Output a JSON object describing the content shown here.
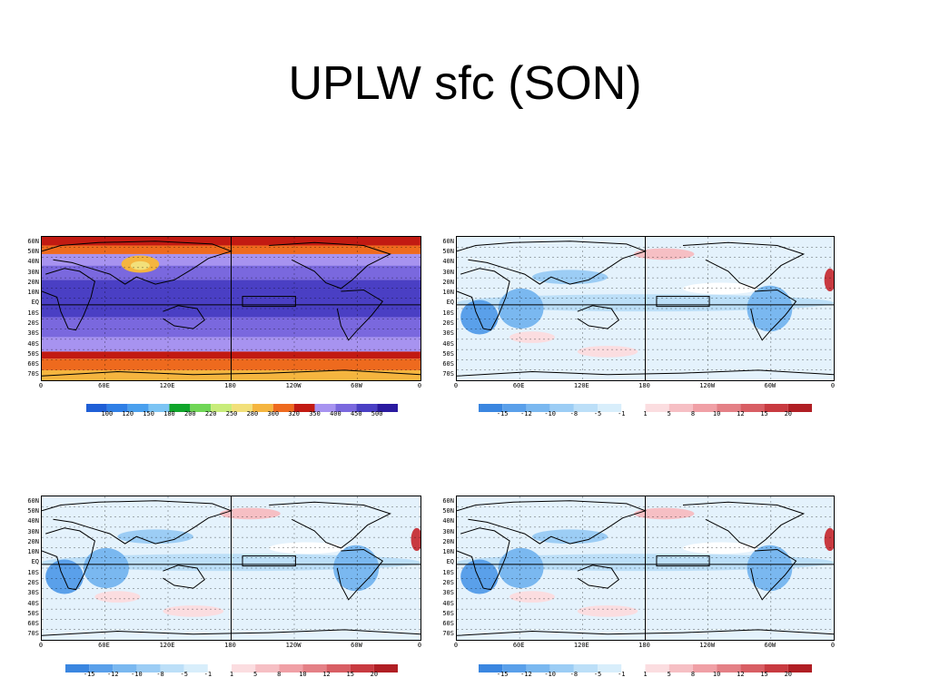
{
  "slide": {
    "title": "UPLW sfc (SON)"
  },
  "panel_title_scale": "not legible",
  "chart_data": [
    {
      "type": "heatmap",
      "panel": "top-left",
      "title": "",
      "kind": "absolute field",
      "lat_ticks": [
        "60N",
        "50N",
        "40N",
        "30N",
        "20N",
        "10N",
        "EQ",
        "10S",
        "20S",
        "30S",
        "40S",
        "50S",
        "60S",
        "70S"
      ],
      "lon_ticks": [
        "0",
        "60E",
        "120E",
        "180",
        "120W",
        "60W",
        "0"
      ],
      "colorbar": {
        "levels": [
          "100",
          "120",
          "150",
          "180",
          "200",
          "220",
          "250",
          "280",
          "300",
          "320",
          "350",
          "400",
          "450",
          "500"
        ],
        "colors": [
          "#1f5fd6",
          "#2f7fe6",
          "#4aa0ee",
          "#7cc4f4",
          "#0fa52a",
          "#6fd656",
          "#c8ec7a",
          "#f2e07a",
          "#f5b53f",
          "#ee6a1e",
          "#c21a12",
          "#a793f0",
          "#7a68de",
          "#4a3fc4",
          "#2a1aa0"
        ]
      },
      "dominant_values": {
        "tropics_ocean": "450-500",
        "mid_latitudes": "350-400",
        "high_latitudes": "300-320"
      }
    },
    {
      "type": "heatmap",
      "panel": "top-right",
      "title": "",
      "kind": "difference field",
      "lat_ticks": [
        "60N",
        "50N",
        "40N",
        "30N",
        "20N",
        "10N",
        "EQ",
        "10S",
        "20S",
        "30S",
        "40S",
        "50S",
        "60S",
        "70S"
      ],
      "lon_ticks": [
        "0",
        "60E",
        "120E",
        "180",
        "120W",
        "60W",
        "0"
      ],
      "colorbar": {
        "levels": [
          "-15",
          "-12",
          "-10",
          "-8",
          "-5",
          "-1",
          "1",
          "5",
          "8",
          "10",
          "12",
          "15",
          "20"
        ],
        "colors": [
          "#3a86e0",
          "#5aa0ea",
          "#7ab8f0",
          "#9ccdf5",
          "#bcdff8",
          "#d8eefb",
          "#ffffff",
          "#fbdde0",
          "#f6bfc4",
          "#f0a0a6",
          "#e48086",
          "#d85e64",
          "#c83a40",
          "#b01e24"
        ]
      }
    },
    {
      "type": "heatmap",
      "panel": "bottom-left",
      "title": "",
      "kind": "difference field",
      "lat_ticks": [
        "60N",
        "50N",
        "40N",
        "30N",
        "20N",
        "10N",
        "EQ",
        "10S",
        "20S",
        "30S",
        "40S",
        "50S",
        "60S",
        "70S"
      ],
      "lon_ticks": [
        "0",
        "60E",
        "120E",
        "180",
        "120W",
        "60W",
        "0"
      ],
      "colorbar": {
        "levels": [
          "-15",
          "-12",
          "-10",
          "-8",
          "-5",
          "-1",
          "1",
          "5",
          "8",
          "10",
          "12",
          "15",
          "20"
        ],
        "colors": [
          "#3a86e0",
          "#5aa0ea",
          "#7ab8f0",
          "#9ccdf5",
          "#bcdff8",
          "#d8eefb",
          "#ffffff",
          "#fbdde0",
          "#f6bfc4",
          "#f0a0a6",
          "#e48086",
          "#d85e64",
          "#c83a40",
          "#b01e24"
        ]
      }
    },
    {
      "type": "heatmap",
      "panel": "bottom-right",
      "title": "",
      "kind": "difference field",
      "lat_ticks": [
        "60N",
        "50N",
        "40N",
        "30N",
        "20N",
        "10N",
        "EQ",
        "10S",
        "20S",
        "30S",
        "40S",
        "50S",
        "60S",
        "70S"
      ],
      "lon_ticks": [
        "0",
        "60E",
        "120E",
        "180",
        "120W",
        "60W",
        "0"
      ],
      "colorbar": {
        "levels": [
          "-15",
          "-12",
          "-10",
          "-8",
          "-5",
          "-1",
          "1",
          "5",
          "8",
          "10",
          "12",
          "15",
          "20"
        ],
        "colors": [
          "#3a86e0",
          "#5aa0ea",
          "#7ab8f0",
          "#9ccdf5",
          "#bcdff8",
          "#d8eefb",
          "#ffffff",
          "#fbdde0",
          "#f6bfc4",
          "#f0a0a6",
          "#e48086",
          "#d85e64",
          "#c83a40",
          "#b01e24"
        ]
      }
    }
  ]
}
